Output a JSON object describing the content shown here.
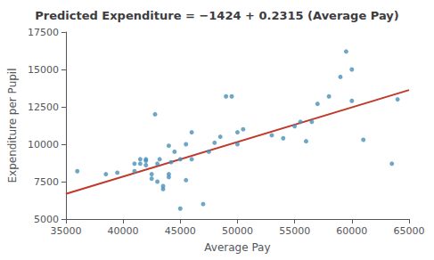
{
  "chart_data": {
    "type": "scatter",
    "title": "Predicted Expenditure = −1424 + 0.2315 (Average Pay)",
    "xlabel": "Average Pay",
    "ylabel": "Expenditure per Pupil",
    "xlim": [
      35000,
      65000
    ],
    "ylim": [
      5000,
      17500
    ],
    "xticks": [
      35000,
      40000,
      45000,
      50000,
      55000,
      60000,
      65000
    ],
    "yticks": [
      5000,
      7500,
      10000,
      12500,
      15000,
      17500
    ],
    "grid": false,
    "series": [
      {
        "type": "scatter",
        "color": "#4a90b8",
        "x": [
          36000,
          38500,
          39500,
          41000,
          41000,
          41500,
          41500,
          42000,
          42000,
          42000,
          42500,
          42500,
          42800,
          43000,
          43000,
          43200,
          43500,
          43500,
          44000,
          44000,
          44000,
          44200,
          44500,
          45000,
          45000,
          45500,
          45500,
          46000,
          46000,
          47000,
          47500,
          48000,
          48500,
          49000,
          49500,
          50000,
          50000,
          50500,
          53000,
          54000,
          55000,
          55500,
          56000,
          56500,
          57000,
          58000,
          59000,
          59500,
          60000,
          60000,
          61000,
          63500,
          64000
        ],
        "values": [
          8200,
          8000,
          8100,
          8700,
          8200,
          8700,
          9000,
          8600,
          8900,
          9000,
          7700,
          8000,
          12000,
          7500,
          8700,
          9000,
          7000,
          7200,
          8000,
          7800,
          9900,
          8800,
          9500,
          5700,
          9000,
          7600,
          10000,
          9000,
          10800,
          6000,
          9500,
          10100,
          10500,
          13200,
          13200,
          10000,
          10800,
          11000,
          10600,
          10400,
          11200,
          11500,
          10200,
          11500,
          12700,
          13200,
          14500,
          16200,
          12900,
          15000,
          10300,
          8700,
          13000
        ]
      },
      {
        "type": "line",
        "color": "#c0392b",
        "x": [
          35000,
          65000
        ],
        "values": [
          6678.5,
          13623.5
        ]
      }
    ]
  }
}
